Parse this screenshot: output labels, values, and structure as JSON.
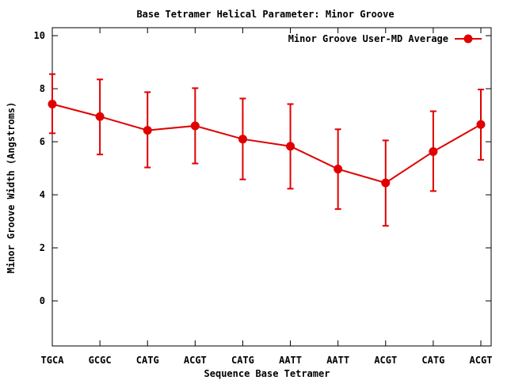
{
  "colors": {
    "series": "#e00000",
    "axis": "#000000",
    "background": "#ffffff"
  },
  "chart_data": {
    "type": "line",
    "title": "Base Tetramer Helical Parameter: Minor Groove",
    "xlabel": "Sequence Base Tetramer",
    "ylabel": "Minor Groove Width (Angstroms)",
    "ylim": [
      -1.7,
      10.3
    ],
    "yticks": [
      0,
      2,
      4,
      6,
      8,
      10
    ],
    "ytick_labels": [
      "0",
      "2",
      "4",
      "6",
      "8",
      "10"
    ],
    "grid": false,
    "legend": "top-right",
    "categories": [
      "TGCA",
      "GCGC",
      "CATG",
      "ACGT",
      "CATG",
      "AATT",
      "AATT",
      "ACGT",
      "CATG",
      "ACGT"
    ],
    "series": [
      {
        "name": "Minor Groove User-MD Average",
        "marker": "circle",
        "values": [
          7.42,
          6.95,
          6.43,
          6.6,
          6.1,
          5.83,
          4.97,
          4.45,
          5.63,
          6.65
        ],
        "error_low": [
          6.32,
          5.52,
          5.03,
          5.18,
          4.58,
          4.23,
          3.46,
          2.83,
          4.14,
          5.32
        ],
        "error_high": [
          8.55,
          8.35,
          7.87,
          8.02,
          7.63,
          7.42,
          6.47,
          6.05,
          7.15,
          7.97
        ]
      }
    ]
  }
}
